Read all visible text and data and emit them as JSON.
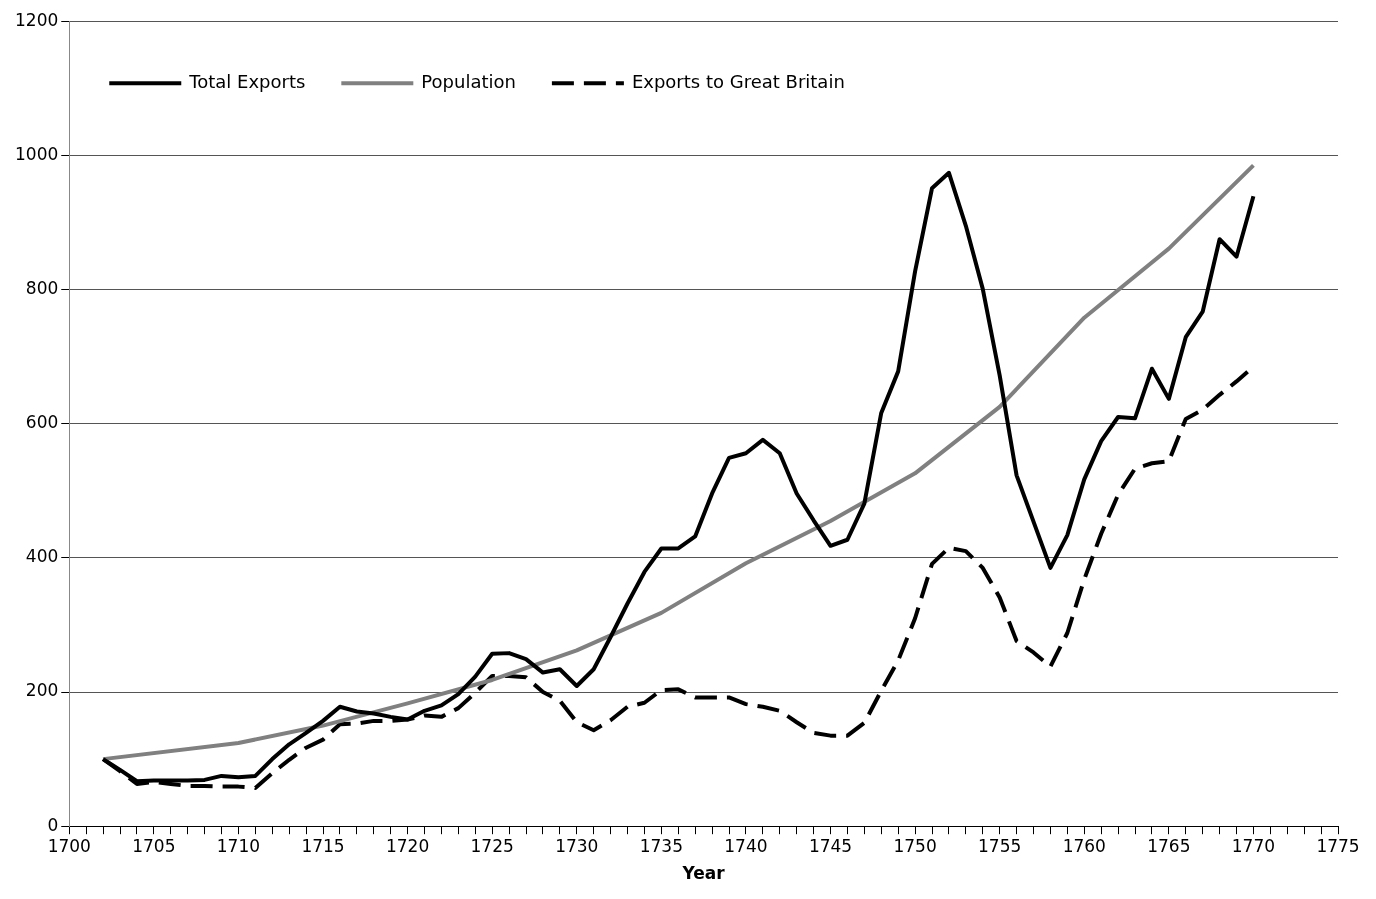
{
  "chart_data": {
    "type": "line",
    "xlabel": "Year",
    "x": [
      1702,
      1703,
      1704,
      1705,
      1706,
      1707,
      1708,
      1709,
      1710,
      1711,
      1712,
      1713,
      1714,
      1715,
      1716,
      1717,
      1718,
      1719,
      1720,
      1721,
      1722,
      1723,
      1724,
      1725,
      1726,
      1727,
      1728,
      1729,
      1730,
      1731,
      1732,
      1733,
      1734,
      1735,
      1736,
      1737,
      1738,
      1739,
      1740,
      1741,
      1742,
      1743,
      1744,
      1745,
      1746,
      1747,
      1748,
      1749,
      1750,
      1751,
      1752,
      1753,
      1754,
      1755,
      1756,
      1757,
      1758,
      1759,
      1760,
      1761,
      1762,
      1763,
      1764,
      1765,
      1766,
      1767,
      1768,
      1769,
      1770
    ],
    "series": [
      {
        "name": "Total Exports",
        "color": "#000000",
        "line_style": "solid",
        "values": [
          100,
          84,
          67,
          68,
          68,
          68,
          69,
          75,
          73,
          75,
          100,
          122,
          139,
          157,
          178,
          171,
          168,
          163,
          159,
          172,
          180,
          197,
          223,
          257,
          258,
          249,
          229,
          234,
          209,
          234,
          282,
          332,
          379,
          414,
          414,
          432,
          496,
          549,
          556,
          576,
          556,
          496,
          456,
          418,
          427,
          481,
          616,
          678,
          827,
          951,
          974,
          895,
          801,
          672,
          523,
          454,
          385,
          434,
          517,
          574,
          610,
          608,
          682,
          637,
          729,
          767,
          875,
          849,
          939
        ]
      },
      {
        "name": "Population",
        "color": "#808080",
        "line_style": "solid",
        "x": [
          1702,
          1710,
          1715,
          1720,
          1725,
          1730,
          1735,
          1740,
          1745,
          1750,
          1755,
          1760,
          1765,
          1770
        ],
        "values": [
          100,
          124,
          150,
          183,
          218,
          262,
          318,
          392,
          455,
          526,
          625,
          758,
          861,
          985
        ]
      },
      {
        "name": "Exports to Great Britain",
        "color": "#000000",
        "line_style": "dashed",
        "values": [
          100,
          82,
          63,
          66,
          63,
          60,
          60,
          59,
          59,
          57,
          79,
          99,
          117,
          129,
          152,
          153,
          157,
          157,
          159,
          165,
          163,
          176,
          199,
          224,
          224,
          222,
          200,
          187,
          155,
          143,
          158,
          178,
          184,
          203,
          204,
          192,
          192,
          192,
          182,
          178,
          172,
          155,
          139,
          135,
          135,
          154,
          202,
          247,
          310,
          391,
          415,
          410,
          385,
          341,
          276,
          259,
          238,
          288,
          368,
          436,
          494,
          533,
          541,
          544,
          607,
          621,
          643,
          663,
          685
        ]
      }
    ],
    "xlim": [
      1700,
      1775
    ],
    "xticks": [
      1700,
      {
        "value": 1701,
        "label": null
      },
      {
        "value": 1702,
        "label": null
      },
      {
        "value": 1703,
        "label": null
      },
      {
        "value": 1704,
        "label": null
      },
      1705,
      {
        "value": 1706,
        "label": null
      },
      {
        "value": 1707,
        "label": null
      },
      {
        "value": 1708,
        "label": null
      },
      {
        "value": 1709,
        "label": null
      },
      1710,
      {
        "value": 1711,
        "label": null
      },
      {
        "value": 1712,
        "label": null
      },
      {
        "value": 1713,
        "label": null
      },
      {
        "value": 1714,
        "label": null
      },
      1715,
      {
        "value": 1716,
        "label": null
      },
      {
        "value": 1717,
        "label": null
      },
      {
        "value": 1718,
        "label": null
      },
      {
        "value": 1719,
        "label": null
      },
      1720,
      {
        "value": 1721,
        "label": null
      },
      {
        "value": 1722,
        "label": null
      },
      {
        "value": 1723,
        "label": null
      },
      {
        "value": 1724,
        "label": null
      },
      1725,
      {
        "value": 1726,
        "label": null
      },
      {
        "value": 1727,
        "label": null
      },
      {
        "value": 1728,
        "label": null
      },
      {
        "value": 1729,
        "label": null
      },
      1730,
      {
        "value": 1731,
        "label": null
      },
      {
        "value": 1732,
        "label": null
      },
      {
        "value": 1733,
        "label": null
      },
      {
        "value": 1734,
        "label": null
      },
      1735,
      {
        "value": 1736,
        "label": null
      },
      {
        "value": 1737,
        "label": null
      },
      {
        "value": 1738,
        "label": null
      },
      {
        "value": 1739,
        "label": null
      },
      1740,
      {
        "value": 1741,
        "label": null
      },
      {
        "value": 1742,
        "label": null
      },
      {
        "value": 1743,
        "label": null
      },
      {
        "value": 1744,
        "label": null
      },
      1745,
      {
        "value": 1746,
        "label": null
      },
      {
        "value": 1747,
        "label": null
      },
      {
        "value": 1748,
        "label": null
      },
      {
        "value": 1749,
        "label": null
      },
      1750,
      {
        "value": 1751,
        "label": null
      },
      {
        "value": 1752,
        "label": null
      },
      {
        "value": 1753,
        "label": null
      },
      {
        "value": 1754,
        "label": null
      },
      1755,
      {
        "value": 1756,
        "label": null
      },
      {
        "value": 1757,
        "label": null
      },
      {
        "value": 1758,
        "label": null
      },
      {
        "value": 1759,
        "label": null
      },
      1760,
      {
        "value": 1761,
        "label": null
      },
      {
        "value": 1762,
        "label": null
      },
      {
        "value": 1763,
        "label": null
      },
      {
        "value": 1764,
        "label": null
      },
      1765,
      {
        "value": 1766,
        "label": null
      },
      {
        "value": 1767,
        "label": null
      },
      {
        "value": 1768,
        "label": null
      },
      {
        "value": 1769,
        "label": null
      },
      1770,
      {
        "value": 1771,
        "label": null
      },
      {
        "value": 1772,
        "label": null
      },
      {
        "value": 1773,
        "label": null
      },
      {
        "value": 1774,
        "label": null
      },
      1775
    ],
    "ylim": [
      0,
      1200
    ],
    "yticks": [
      0,
      200,
      400,
      600,
      800,
      1000,
      1200
    ],
    "grid": "y",
    "legend": "top left",
    "marker": "none"
  }
}
